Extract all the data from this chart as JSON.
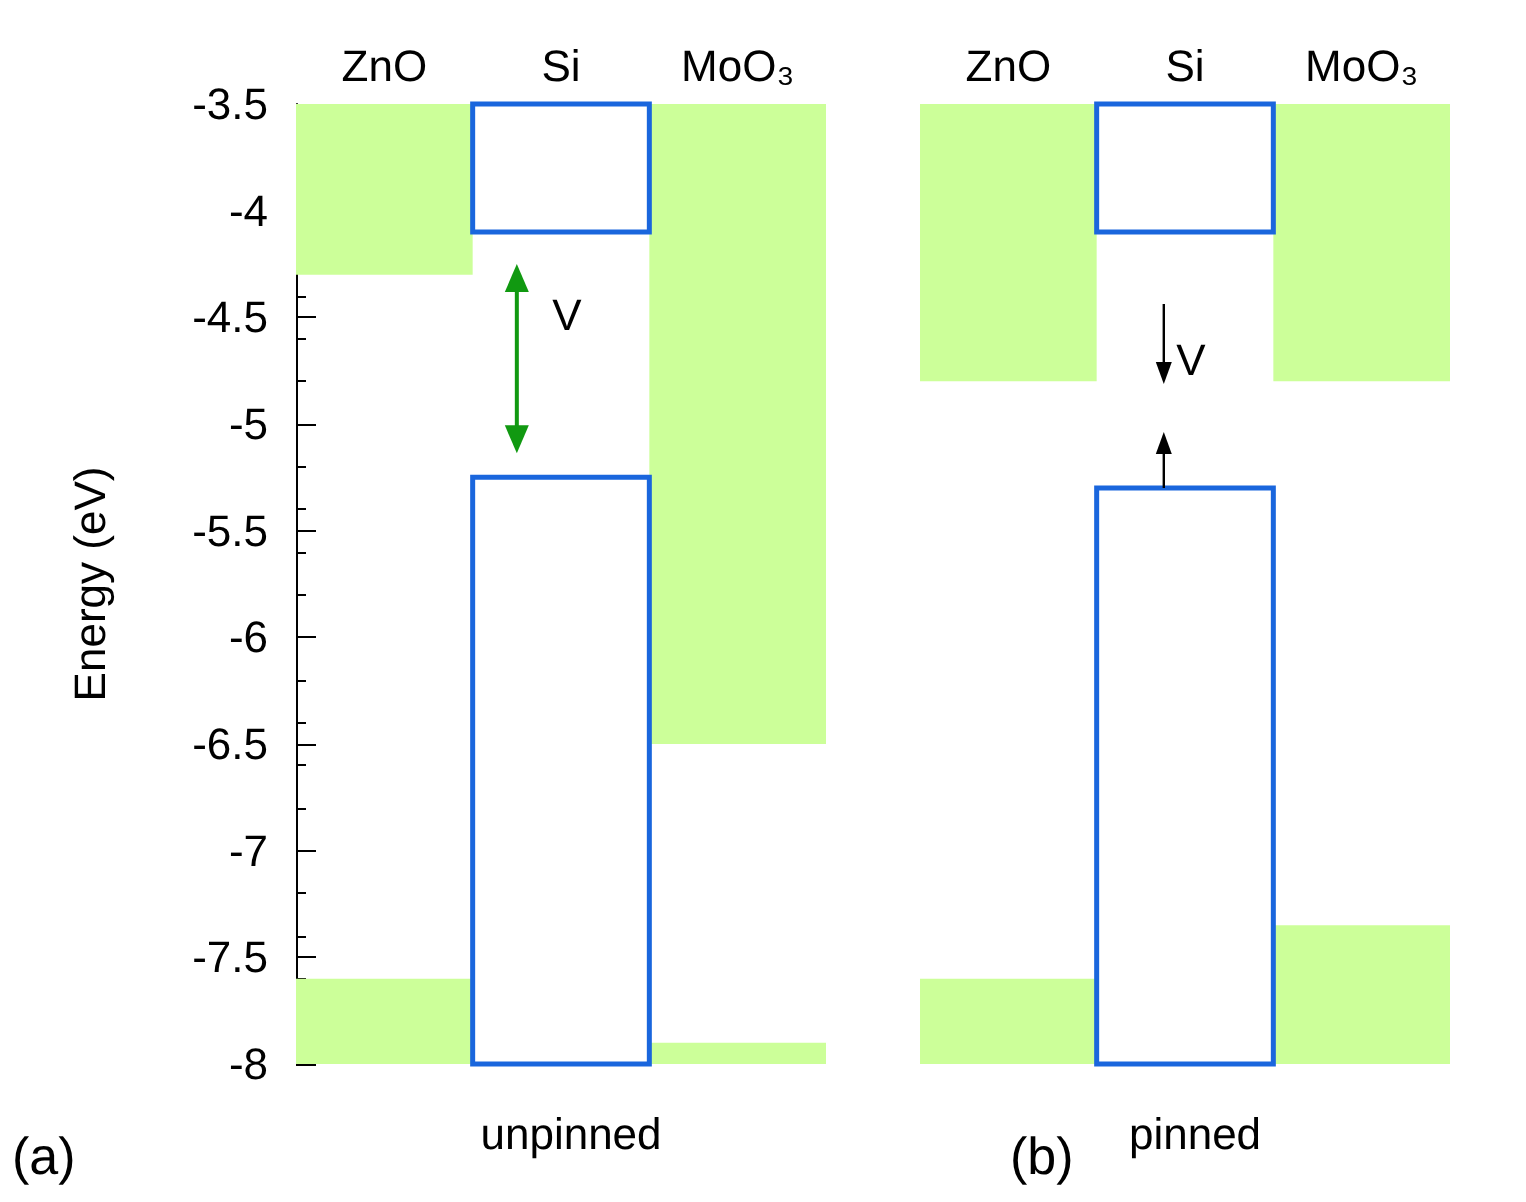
{
  "chart_data": [
    {
      "type": "bar",
      "categories": [
        "ZnO",
        "Si",
        "MoO₃"
      ],
      "ylabel": "Energy (eV)",
      "xlabel": "unpinned",
      "ylim": [
        -8,
        -3.5
      ],
      "yticks": [
        -8,
        -7.5,
        -7,
        -6.5,
        -6,
        -5.5,
        -5,
        -4.5,
        -4,
        -3.5
      ],
      "grid": false,
      "series": [
        {
          "color": "#ccff99",
          "base": [
            -4.3,
            null,
            -6.5
          ],
          "values": [
            0.8,
            null,
            3.0
          ]
        },
        {
          "color": "#ccff99",
          "base": [
            -8,
            null,
            -8
          ],
          "values": [
            0.4,
            null,
            0.1
          ]
        },
        {
          "color": "#1a66dd",
          "line_style": "solid",
          "base": [
            null,
            -4.1,
            null
          ],
          "values": [
            null,
            0.6,
            null
          ]
        },
        {
          "color": "#1a66dd",
          "line_style": "solid",
          "base": [
            null,
            -8,
            null
          ],
          "values": [
            null,
            2.75,
            null
          ]
        }
      ],
      "annotations": [
        "(a)",
        "V"
      ]
    },
    {
      "type": "bar",
      "categories": [
        "ZnO",
        "Si",
        "MoO₃"
      ],
      "xlabel": "pinned",
      "ylim": [
        -8,
        -3.5
      ],
      "yticks": [
        -8,
        -7.5,
        -7,
        -6.5,
        -6,
        -5.5,
        -5,
        -4.5,
        -4,
        -3.5
      ],
      "tick_labels": "x",
      "grid": false,
      "series": [
        {
          "color": "#ccff99",
          "base": [
            -4.8,
            null,
            -4.8
          ],
          "values": [
            1.3,
            null,
            1.3
          ]
        },
        {
          "color": "#ccff99",
          "base": [
            -8,
            null,
            -8
          ],
          "values": [
            0.4,
            null,
            0.65
          ]
        },
        {
          "color": "#1a66dd",
          "line_style": "solid",
          "base": [
            null,
            -4.1,
            null
          ],
          "values": [
            null,
            0.6,
            null
          ]
        },
        {
          "color": "#1a66dd",
          "line_style": "solid",
          "base": [
            null,
            -8,
            null
          ],
          "values": [
            null,
            2.7,
            null
          ]
        }
      ],
      "annotations": [
        "(b)",
        "V"
      ]
    }
  ]
}
